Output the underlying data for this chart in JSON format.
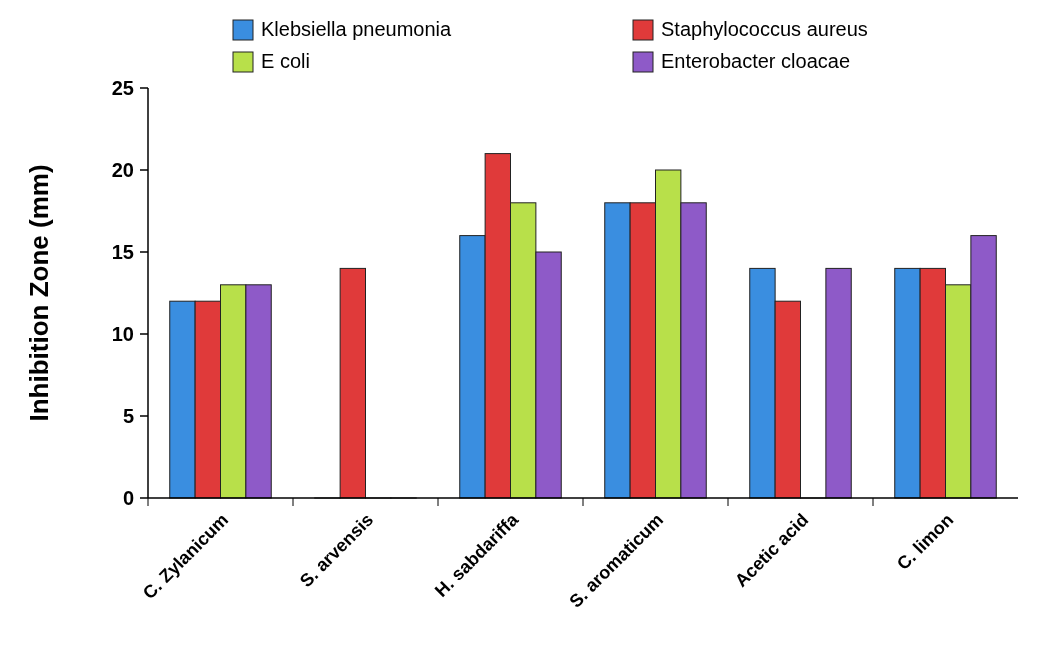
{
  "chart_data": {
    "type": "bar",
    "ylabel": "Inhibition Zone (mm)",
    "categories": [
      "C. Zylanicum",
      "S. arvensis",
      "H. sabdariffa",
      "S. aromaticum",
      "Acetic acid",
      "C. limon"
    ],
    "series": [
      {
        "name": "Klebsiella pneumonia",
        "color": "#3a8ee0",
        "values": [
          12,
          0,
          16,
          18,
          14,
          14
        ]
      },
      {
        "name": "Staphylococcus aureus",
        "color": "#e03a3a",
        "values": [
          12,
          14,
          21,
          18,
          12,
          14
        ]
      },
      {
        "name": "E coli",
        "color": "#b8e04a",
        "values": [
          13,
          0,
          18,
          20,
          0,
          13
        ]
      },
      {
        "name": "Enterobacter cloacae",
        "color": "#8e5ac8",
        "values": [
          13,
          0,
          15,
          18,
          14,
          16
        ]
      }
    ],
    "ylim": [
      0,
      25
    ],
    "yticks": [
      0,
      5,
      10,
      15,
      20,
      25
    ],
    "grid": false,
    "legend": "top"
  }
}
